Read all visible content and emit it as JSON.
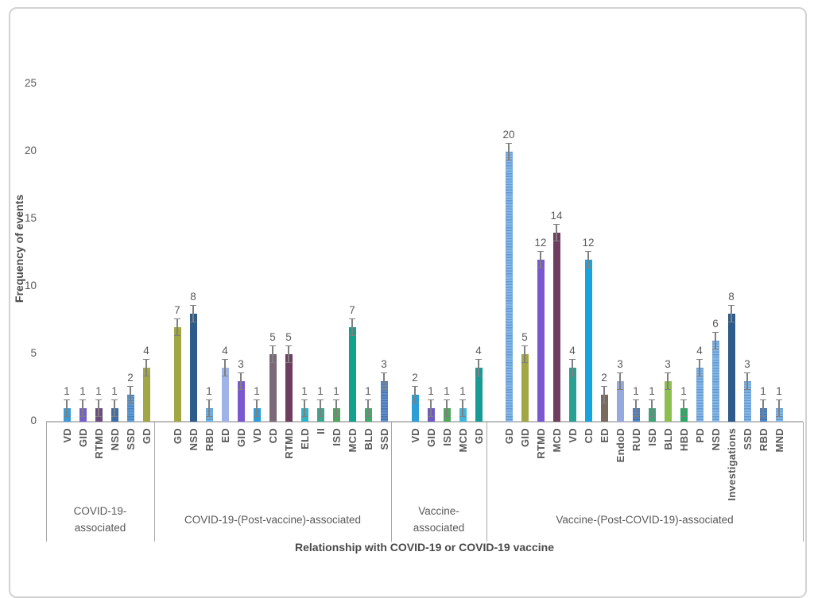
{
  "figure": {
    "border_color": "#d2d2d2",
    "background": "#ffffff"
  },
  "colors": {
    "axis_line": "#bdbdbd",
    "group_separator": "#a8a8a8",
    "error_bar": "#7f7f7f",
    "label_text": "#595959",
    "title_text": "#4a4a4a"
  },
  "chart_data": {
    "type": "bar",
    "title": "",
    "ylabel": "Frequency of events",
    "xlabel": "Relationship with COVID-19 or COVID-19 vaccine",
    "ylim": [
      0,
      25
    ],
    "y_ticks": [
      0,
      5,
      10,
      15,
      20,
      25
    ],
    "grid": false,
    "legend": false,
    "error_bars": true,
    "groups": [
      {
        "label": "COVID-19-associated",
        "bars": [
          {
            "label": "VD",
            "value": 1,
            "color": "#3e9cd5"
          },
          {
            "label": "GID",
            "value": 1,
            "color": "#7560c8"
          },
          {
            "label": "RTMD",
            "value": 1,
            "color": "#6c4c7f"
          },
          {
            "label": "NSD",
            "value": 1,
            "color": "#3e6ea5"
          },
          {
            "label": "SSD",
            "value": 2,
            "color": "#5d9bd8",
            "stripe": "#4b82bb"
          },
          {
            "label": "GD",
            "value": 4,
            "color": "#a2a644"
          }
        ]
      },
      {
        "label": "COVID-19-(Post-vaccine)-associated",
        "bars": [
          {
            "label": "GD",
            "value": 7,
            "color": "#a2a644"
          },
          {
            "label": "NSD",
            "value": 8,
            "color": "#2e5c8a"
          },
          {
            "label": "RBD",
            "value": 1,
            "color": "#74b2e1",
            "stripe": "#5b99cc"
          },
          {
            "label": "ED",
            "value": 4,
            "color": "#9fb3e8"
          },
          {
            "label": "GID",
            "value": 3,
            "color": "#7a58d0"
          },
          {
            "label": "VD",
            "value": 1,
            "color": "#2e9ed6"
          },
          {
            "label": "CD",
            "value": 5,
            "color": "#7c6876"
          },
          {
            "label": "RTMD",
            "value": 5,
            "color": "#6f3d60"
          },
          {
            "label": "ELD",
            "value": 1,
            "color": "#2fb3c9"
          },
          {
            "label": "II",
            "value": 1,
            "color": "#3ca78e"
          },
          {
            "label": "ISD",
            "value": 1,
            "color": "#50a560"
          },
          {
            "label": "MCD",
            "value": 7,
            "color": "#12a18d"
          },
          {
            "label": "BLD",
            "value": 1,
            "color": "#3fab68"
          },
          {
            "label": "SSD",
            "value": 3,
            "color": "#5d8dcb",
            "stripe": "#4a74ae"
          }
        ]
      },
      {
        "label": "Vaccine-associated",
        "bars": [
          {
            "label": "VD",
            "value": 2,
            "color": "#2e9ed6"
          },
          {
            "label": "GID",
            "value": 1,
            "color": "#6e5ac5"
          },
          {
            "label": "ISD",
            "value": 1,
            "color": "#52a65f"
          },
          {
            "label": "MCD",
            "value": 1,
            "color": "#40b5dc"
          },
          {
            "label": "GD",
            "value": 4,
            "color": "#189b95"
          }
        ]
      },
      {
        "label": "Vaccine-(Post-COVID-19)-associated",
        "bars": [
          {
            "label": "GD",
            "value": 20,
            "color": "#86b6e4",
            "stripe": "#639ad2"
          },
          {
            "label": "GID",
            "value": 5,
            "color": "#a2a644"
          },
          {
            "label": "RTMD",
            "value": 12,
            "color": "#7a58d0"
          },
          {
            "label": "MCD",
            "value": 14,
            "color": "#6f3d60"
          },
          {
            "label": "VD",
            "value": 4,
            "color": "#28a093"
          },
          {
            "label": "CD",
            "value": 12,
            "color": "#17a3dd"
          },
          {
            "label": "ED",
            "value": 2,
            "color": "#786a5f"
          },
          {
            "label": "EndoD",
            "value": 3,
            "color": "#97aadf"
          },
          {
            "label": "RUD",
            "value": 1,
            "color": "#5587c8",
            "stripe": "#4270a8"
          },
          {
            "label": "ISD",
            "value": 1,
            "color": "#41a37c"
          },
          {
            "label": "BLD",
            "value": 3,
            "color": "#8dbe50"
          },
          {
            "label": "HBD",
            "value": 1,
            "color": "#2da765"
          },
          {
            "label": "PD",
            "value": 4,
            "color": "#86b6e4",
            "stripe": "#639ad2"
          },
          {
            "label": "NSD",
            "value": 6,
            "color": "#86b6e4",
            "stripe": "#639ad2"
          },
          {
            "label": "Investigations",
            "value": 8,
            "color": "#2e5c8a"
          },
          {
            "label": "SSD",
            "value": 3,
            "color": "#86b6e4",
            "stripe": "#639ad2"
          },
          {
            "label": "RBD",
            "value": 1,
            "color": "#5587c8",
            "stripe": "#4270a8"
          },
          {
            "label": "MND",
            "value": 1,
            "color": "#86b6e4",
            "stripe": "#639ad2"
          }
        ]
      }
    ]
  }
}
